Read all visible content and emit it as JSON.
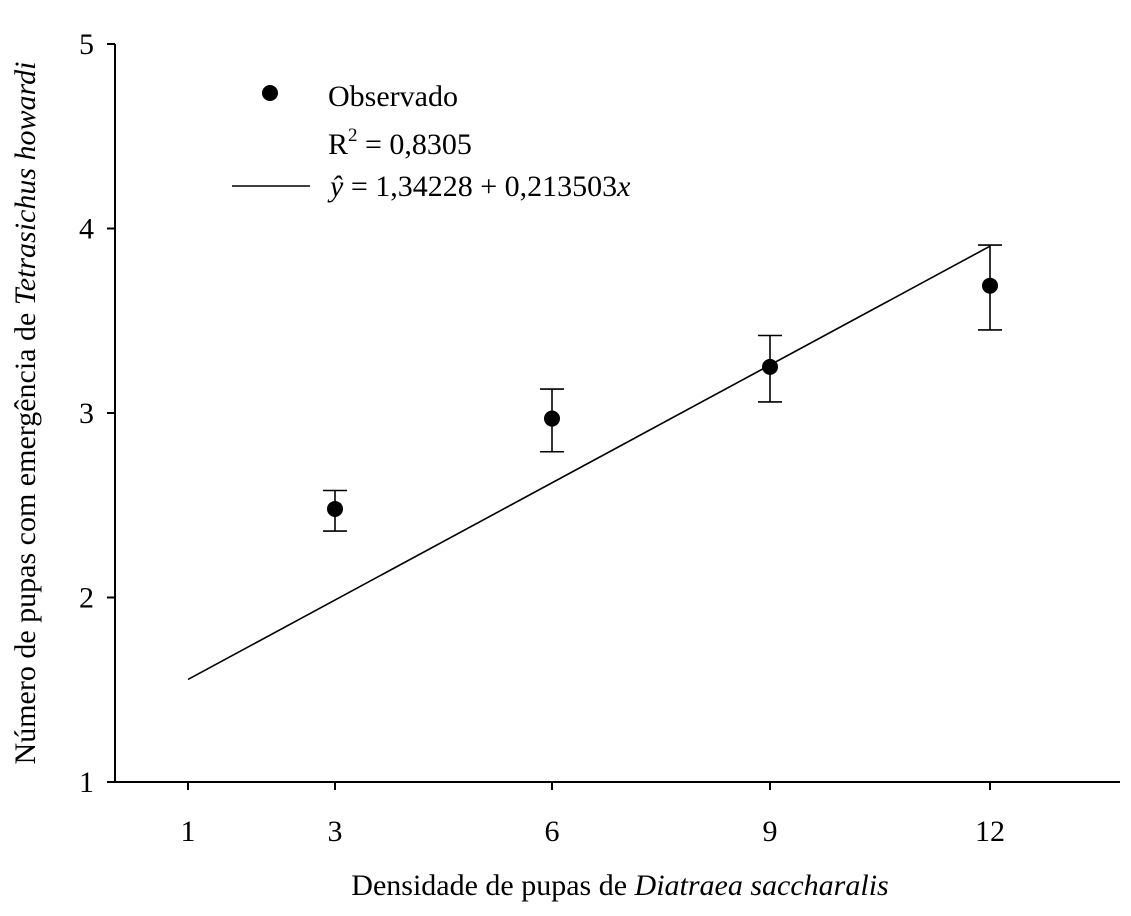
{
  "chart_data": {
    "type": "scatter",
    "xlabel": "Densidade de pupas de ",
    "xlabel_species": "Diatraea saccharalis",
    "ylabel": "Número de pupas com emergência de ",
    "ylabel_species": "Tetrasichus howardi",
    "x_ticks": [
      "1",
      "3",
      "6",
      "9",
      "12"
    ],
    "y_ticks": [
      "1",
      "2",
      "3",
      "4",
      "5"
    ],
    "ylim": [
      1,
      5
    ],
    "grid": false,
    "legend_position": "top-left",
    "series": [
      {
        "name": "Observado",
        "kind": "points_with_error_bars",
        "x": [
          3,
          6,
          9,
          12
        ],
        "y": [
          2.48,
          2.97,
          3.25,
          3.69
        ],
        "err_low": [
          2.36,
          2.79,
          3.06,
          3.45
        ],
        "err_high": [
          2.58,
          3.13,
          3.42,
          3.91
        ]
      },
      {
        "name": "ŷ = 1,34228 + 0,213503x",
        "kind": "regression_line",
        "intercept": 1.34228,
        "slope": 0.213503,
        "x_range": [
          1,
          12
        ]
      }
    ],
    "legend": {
      "observed": "Observado",
      "r2_prefix": "R",
      "r2_exp": "2",
      "r2_suffix": " = 0,8305",
      "eq_yhat": "ŷ",
      "eq_eq": " = ",
      "eq_intercept": "1,34228",
      "eq_plus": " + ",
      "eq_slope": "0,213503",
      "eq_x": "x"
    }
  }
}
